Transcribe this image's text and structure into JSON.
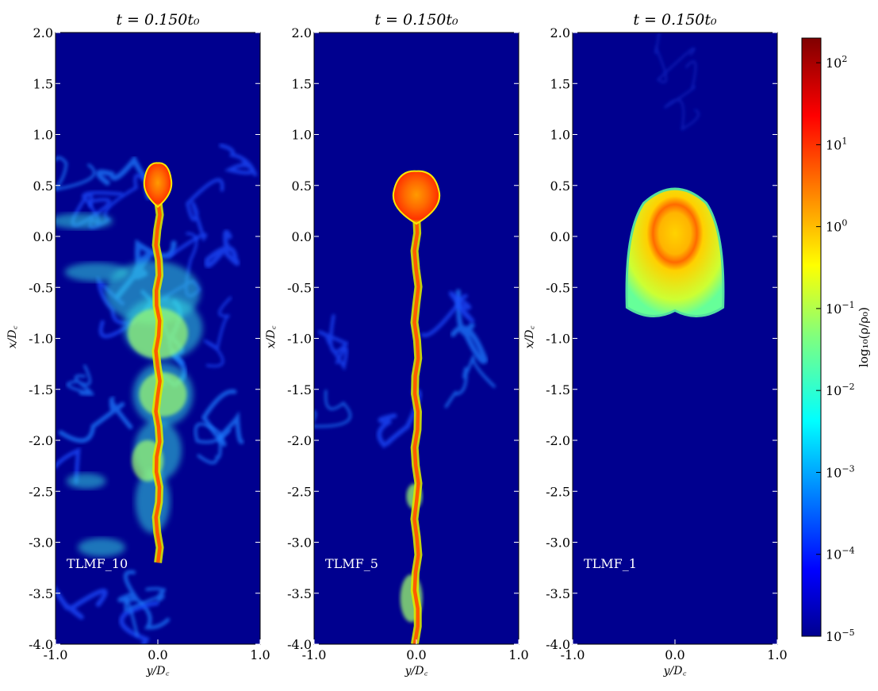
{
  "chart_data": {
    "type": "heatmap",
    "panels": [
      {
        "title": "t = 0.150t₀",
        "label": "TLMF_10",
        "xlabel": "y/D꜀",
        "ylabel": "x/D꜀",
        "xlim": [
          -1.0,
          1.0
        ],
        "ylim": [
          -4.0,
          2.0
        ],
        "xticks": [
          "-1.0",
          "0.0",
          "1.0"
        ],
        "yticks": [
          "-4.0",
          "-3.5",
          "-3.0",
          "-2.5",
          "-2.0",
          "-1.5",
          "-1.0",
          "-0.5",
          "0.0",
          "0.5",
          "1.0",
          "1.5",
          "2.0"
        ],
        "cloud": {
          "head_y": 0.0,
          "head_x": 0.52,
          "head_rx": 0.13,
          "head_ry": 0.2,
          "tail_to": -3.2,
          "mixing": "strong"
        }
      },
      {
        "title": "t = 0.150t₀",
        "label": "TLMF_5",
        "xlabel": "y/D꜀",
        "ylabel": "x/D꜀",
        "xlim": [
          -1.0,
          1.0
        ],
        "ylim": [
          -4.0,
          2.0
        ],
        "xticks": [
          "-1.0",
          "0.0",
          "1.0"
        ],
        "yticks": [
          "-4.0",
          "-3.5",
          "-3.0",
          "-2.5",
          "-2.0",
          "-1.5",
          "-1.0",
          "-0.5",
          "0.0",
          "0.5",
          "1.0",
          "1.5",
          "2.0"
        ],
        "cloud": {
          "head_y": 0.0,
          "head_x": 0.4,
          "head_rx": 0.22,
          "head_ry": 0.24,
          "tail_to": -4.0,
          "mixing": "moderate"
        }
      },
      {
        "title": "t = 0.150t₀",
        "label": "TLMF_1",
        "xlabel": "y/D꜀",
        "ylabel": "x/D꜀",
        "xlim": [
          -1.0,
          1.0
        ],
        "ylim": [
          -4.0,
          2.0
        ],
        "xticks": [
          "-1.0",
          "0.0",
          "1.0"
        ],
        "yticks": [
          "-4.0",
          "-3.5",
          "-3.0",
          "-2.5",
          "-2.0",
          "-1.5",
          "-1.0",
          "-0.5",
          "0.0",
          "0.5",
          "1.0",
          "1.5",
          "2.0"
        ],
        "cloud": {
          "head_y": 0.0,
          "head_x": -0.2,
          "head_rx": 0.47,
          "head_ry": 0.62,
          "tail_to": -0.8,
          "mixing": "weak"
        }
      }
    ],
    "colorbar": {
      "label": "log₁₀(ρ/ρ₀)",
      "scale": "log",
      "range": [
        1e-05,
        200
      ],
      "ticks": [
        {
          "base": "10",
          "exp": "2"
        },
        {
          "base": "10",
          "exp": "1"
        },
        {
          "base": "10",
          "exp": "0"
        },
        {
          "base": "10",
          "exp": "−1"
        },
        {
          "base": "10",
          "exp": "−2"
        },
        {
          "base": "10",
          "exp": "−3"
        },
        {
          "base": "10",
          "exp": "−4"
        },
        {
          "base": "10",
          "exp": "−5"
        }
      ],
      "colormap": "jet"
    },
    "colors": {
      "background": "#00008f",
      "low": "#00008f",
      "high": "#800000"
    }
  }
}
